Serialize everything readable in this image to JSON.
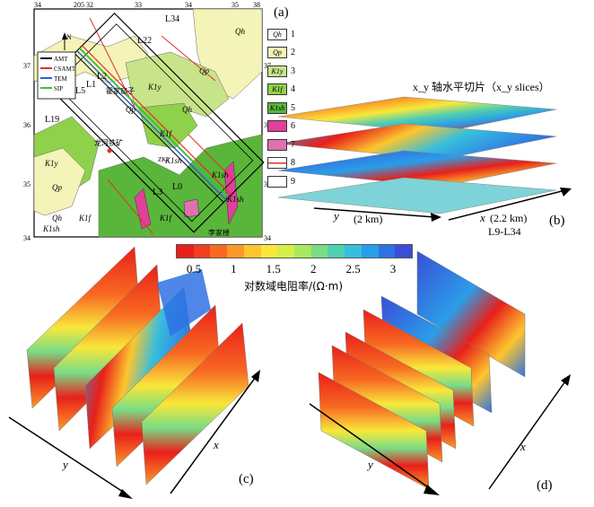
{
  "panel_a": {
    "label": "(a)",
    "grid_top_labels": [
      "34",
      "205",
      "32",
      "33",
      "34",
      "35",
      "38"
    ],
    "grid_left_labels": [
      "37",
      "36",
      "35",
      "34"
    ],
    "grid_right_labels": [
      "37",
      "36",
      "35",
      "34"
    ],
    "north_label": "N",
    "line_labels": [
      "L34",
      "L22",
      "L2",
      "L1",
      "L5",
      "L19",
      "L3",
      "L0"
    ],
    "map_unit_labels": [
      "Qh",
      "Qp",
      "K1y",
      "Qp",
      "Qh",
      "K1f",
      "K1sh",
      "K1y",
      "Qp",
      "Qh",
      "K1sh",
      "K1f",
      "K1f",
      "K1sh",
      "K1sh"
    ],
    "place_labels": [
      "霍家窑子",
      "龙河铁矿",
      "李家楼",
      "ZK1"
    ],
    "survey_legend": [
      {
        "label": "AMT",
        "color": "#000000"
      },
      {
        "label": "CSAMT",
        "color": "#e0302a"
      },
      {
        "label": "TEM",
        "color": "#2a5fd8"
      },
      {
        "label": "SIP",
        "color": "#3dbf3a"
      }
    ]
  },
  "geology_legend": [
    {
      "symbol": "Qh",
      "num": "1",
      "color": "#ffffff"
    },
    {
      "symbol": "Qp",
      "num": "2",
      "color": "#f4f3b8"
    },
    {
      "symbol": "K1y",
      "num": "3",
      "color": "#c8e48a"
    },
    {
      "symbol": "K1f",
      "num": "4",
      "color": "#8fd14a"
    },
    {
      "symbol": "K1sh",
      "num": "5",
      "color": "#5ab63a"
    },
    {
      "symbol": "",
      "num": "6",
      "color": "#e0409a"
    },
    {
      "symbol": "",
      "num": "7",
      "color": "#e070b0"
    },
    {
      "symbol": "",
      "num": "8",
      "color": "#ffffff",
      "line": "#e0302a"
    },
    {
      "symbol": "",
      "num": "9",
      "color": "#ffffff"
    }
  ],
  "panel_b": {
    "label": "(b)",
    "title": "x_y 轴水平切片（x_y slices）",
    "y_axis": "y",
    "y_span": "(2 km)",
    "x_axis": "x",
    "x_span": "(2.2 km)",
    "x_lines": "L9-L34"
  },
  "colorbar": {
    "ticks": [
      "0.5",
      "1",
      "1.5",
      "2",
      "2.5",
      "3"
    ],
    "label": "对数域电阻率/(Ω·m)",
    "colors": [
      "#e8201a",
      "#f04020",
      "#f86a22",
      "#fb9a28",
      "#fdc52e",
      "#f8e83a",
      "#d6ef48",
      "#a9e860",
      "#79dc86",
      "#4fcfb0",
      "#36bedd",
      "#2a9de8",
      "#2f72e4",
      "#3a4ed8"
    ]
  },
  "panel_c": {
    "label": "(c)",
    "x_axis": "x",
    "y_axis": "y"
  },
  "panel_d": {
    "label": "(d)",
    "x_axis": "x",
    "y_axis": "y"
  }
}
